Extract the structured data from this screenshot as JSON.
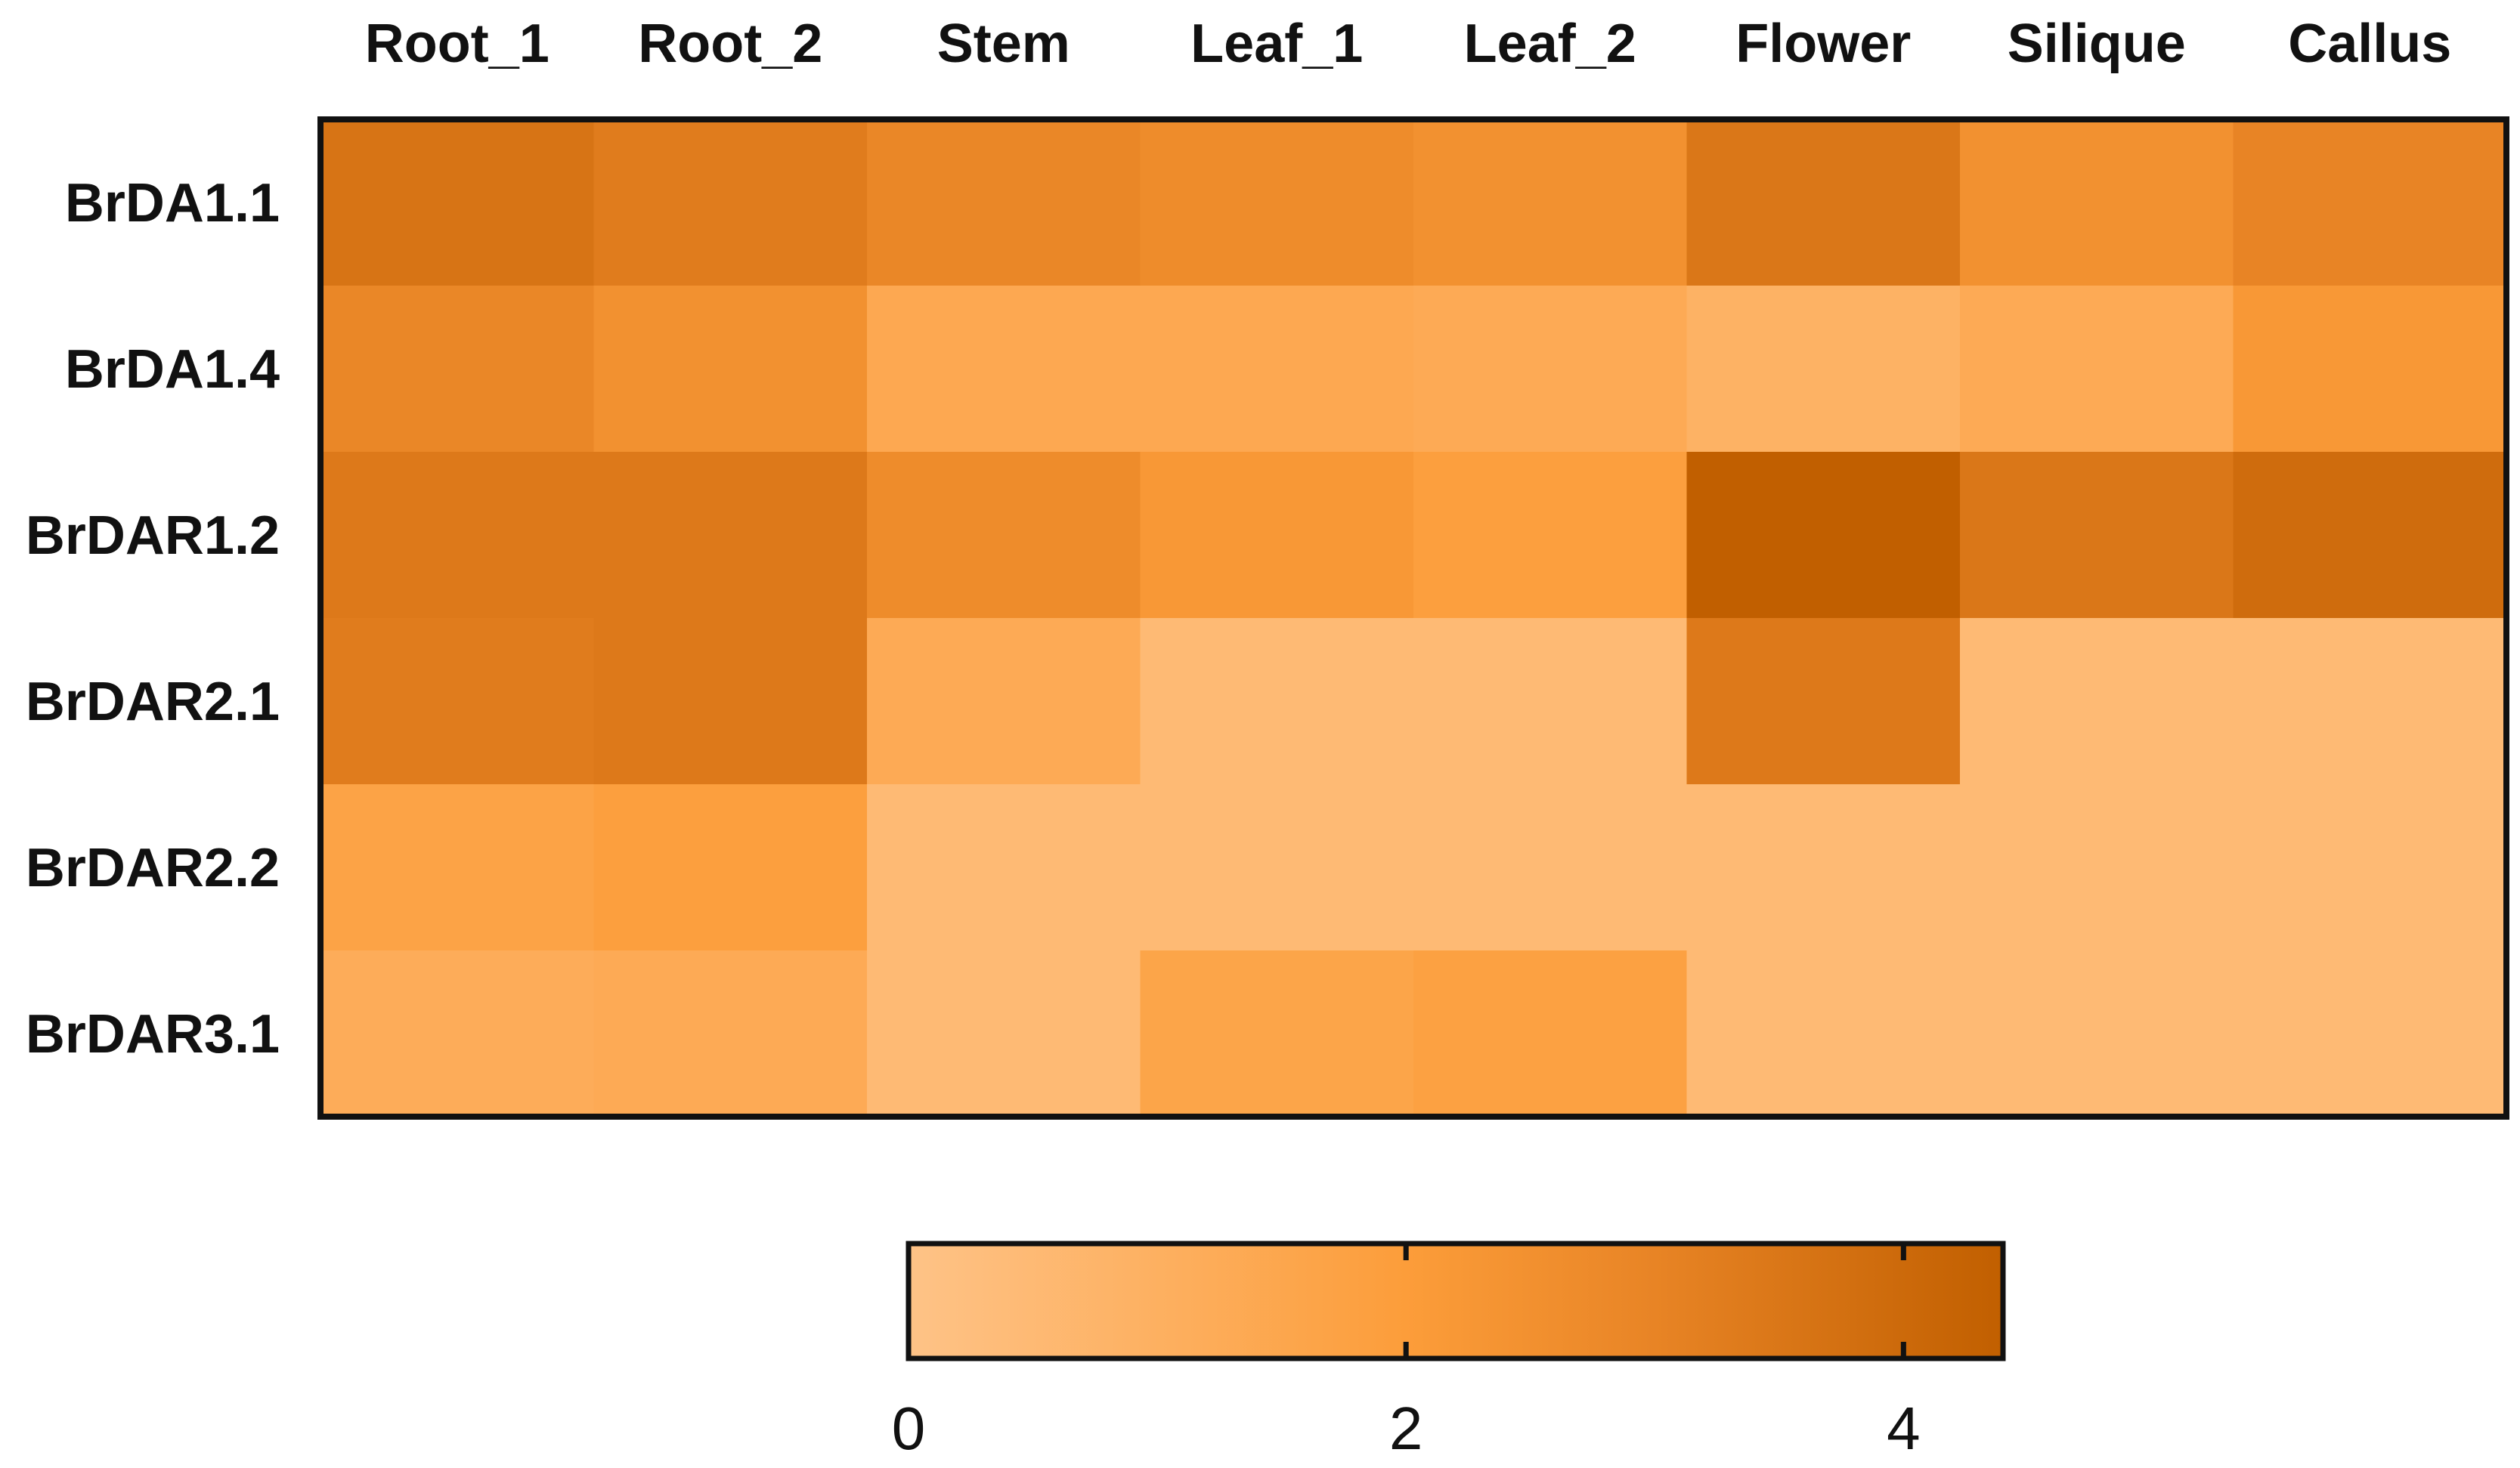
{
  "chart_data": {
    "type": "heatmap",
    "columns": [
      "Root_1",
      "Root_2",
      "Stem",
      "Leaf_1",
      "Leaf_2",
      "Flower",
      "Silique",
      "Callus"
    ],
    "rows": [
      "BrDA1.1",
      "BrDA1.4",
      "BrDAR1.2",
      "BrDAR2.1",
      "BrDAR2.2",
      "BrDAR3.1"
    ],
    "values": [
      [
        3.6,
        3.3,
        2.9,
        2.7,
        2.5,
        3.5,
        2.5,
        3.0
      ],
      [
        2.9,
        2.5,
        1.4,
        1.4,
        1.3,
        0.9,
        1.3,
        2.2
      ],
      [
        3.4,
        3.4,
        2.7,
        2.2,
        1.9,
        4.4,
        3.5,
        3.9
      ],
      [
        3.3,
        3.4,
        1.3,
        0.5,
        0.5,
        3.4,
        0.5,
        0.5
      ],
      [
        1.7,
        1.9,
        0.5,
        0.5,
        0.5,
        0.5,
        0.5,
        0.5
      ],
      [
        1.2,
        1.3,
        0.5,
        1.6,
        1.8,
        0.5,
        0.5,
        0.5
      ]
    ],
    "colorbar": {
      "min": 0,
      "max": 4.4,
      "ticks": [
        0,
        2,
        4
      ],
      "tick_labels": [
        "0",
        "2",
        "4"
      ],
      "colors": [
        "#FEC387",
        "#FC9D3A",
        "#E88425",
        "#C15F00"
      ],
      "stops": [
        0,
        2,
        3,
        4.4
      ]
    },
    "grid": false,
    "legend": "bottom-center"
  }
}
